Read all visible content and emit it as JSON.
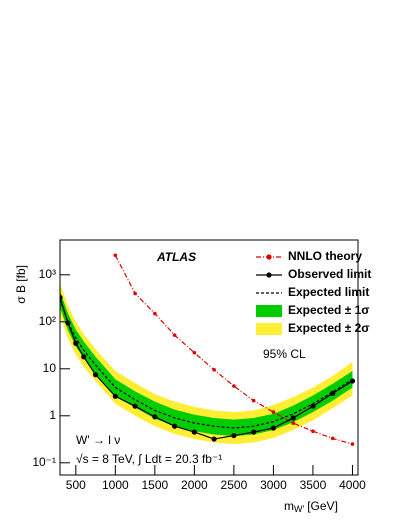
{
  "chart_data": {
    "type": "line",
    "ylabel": "σ B [fb]",
    "xlabel": {
      "main": "m",
      "sub": "W'",
      "unit": "[GeV]"
    },
    "annotations": {
      "experiment": "ATLAS",
      "cl": "95% CL",
      "process": "W' → l ν",
      "conditions": "√s = 8 TeV, ∫ Ldt = 20.3 fb⁻¹"
    },
    "log_y": true,
    "xlim": [
      300,
      4070
    ],
    "ylim": [
      0.055,
      5500
    ],
    "xticks": [
      500,
      1000,
      1500,
      2000,
      2500,
      3000,
      3500,
      4000
    ],
    "yticks": [
      {
        "value": 0.1,
        "label": "10⁻¹"
      },
      1,
      10,
      {
        "value": 100,
        "label": "10²"
      },
      {
        "value": 1000,
        "label": "10³"
      }
    ],
    "legend": "top-right",
    "bands": [
      {
        "name": "Expected ± 2σ",
        "color": "#ffee33",
        "x": [
          300,
          400,
          500,
          600,
          750,
          1000,
          1250,
          1500,
          1750,
          2000,
          2250,
          2500,
          2750,
          3000,
          3250,
          3500,
          3750,
          4000
        ],
        "lower": [
          140,
          45,
          20,
          11,
          5.5,
          1.8,
          1,
          0.6,
          0.41,
          0.32,
          0.27,
          0.25,
          0.27,
          0.34,
          0.5,
          0.8,
          1.45,
          2.7
        ],
        "upper": [
          660,
          220,
          100,
          55,
          26,
          9,
          5,
          2.9,
          2,
          1.55,
          1.3,
          1.2,
          1.3,
          1.7,
          2.5,
          4,
          7,
          14
        ]
      },
      {
        "name": "Expected ± 1σ",
        "color": "#00cc00",
        "x": [
          300,
          400,
          500,
          600,
          750,
          1000,
          1250,
          1500,
          1750,
          2000,
          2250,
          2500,
          2750,
          3000,
          3250,
          3500,
          3750,
          4000
        ],
        "lower": [
          200,
          67,
          30,
          17,
          8,
          2.7,
          1.5,
          0.87,
          0.6,
          0.47,
          0.4,
          0.37,
          0.4,
          0.5,
          0.73,
          1.2,
          2.1,
          4
        ],
        "upper": [
          450,
          150,
          68,
          38,
          18,
          6,
          3.3,
          2,
          1.35,
          1.05,
          0.9,
          0.83,
          0.9,
          1.1,
          1.65,
          2.7,
          4.8,
          9
        ]
      }
    ],
    "series": [
      {
        "name": "NNLO theory",
        "color": "#dd0000",
        "style": "dash-dot-markers",
        "x": [
          1000,
          1250,
          1500,
          1750,
          2000,
          2250,
          2500,
          2750,
          3000,
          3250,
          3500,
          3750,
          4000
        ],
        "values": [
          2600,
          400,
          150,
          52,
          22,
          9.5,
          4.3,
          2.1,
          1.2,
          0.7,
          0.47,
          0.33,
          0.25
        ]
      },
      {
        "name": "Observed limit",
        "color": "#000000",
        "style": "solid-markers",
        "x": [
          300,
          400,
          500,
          600,
          750,
          1000,
          1250,
          1500,
          1750,
          2000,
          2250,
          2500,
          2750,
          3000,
          3250,
          3500,
          3750,
          4000
        ],
        "values": [
          330,
          95,
          35,
          18,
          7.5,
          2.6,
          1.6,
          0.95,
          0.6,
          0.45,
          0.32,
          0.38,
          0.45,
          0.55,
          0.9,
          1.6,
          3.0,
          5.5
        ]
      },
      {
        "name": "Expected  limit",
        "color": "#000000",
        "style": "dotted",
        "x": [
          300,
          400,
          500,
          600,
          750,
          1000,
          1250,
          1500,
          1750,
          2000,
          2250,
          2500,
          2750,
          3000,
          3250,
          3500,
          3750,
          4000
        ],
        "values": [
          300,
          100,
          45,
          25,
          12,
          4,
          2.2,
          1.3,
          0.9,
          0.7,
          0.6,
          0.55,
          0.6,
          0.75,
          1.1,
          1.8,
          3.2,
          6
        ]
      }
    ]
  }
}
